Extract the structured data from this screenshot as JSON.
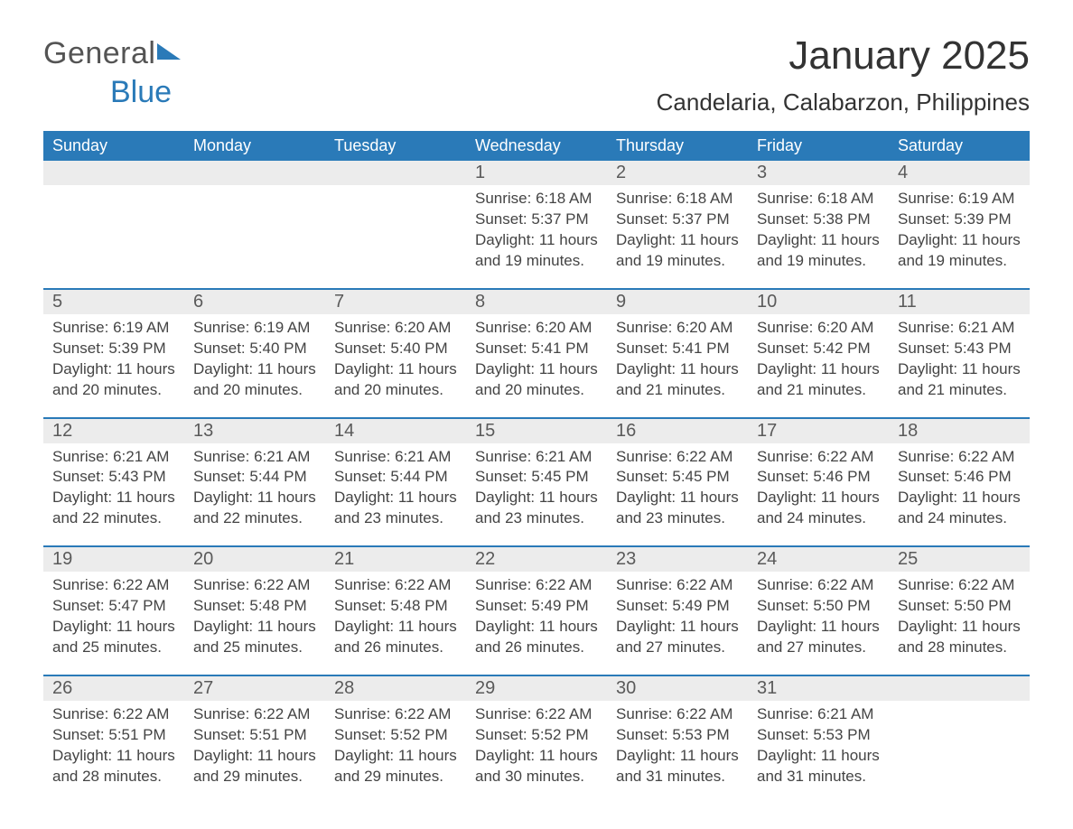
{
  "logo": {
    "word1": "General",
    "word2": "Blue"
  },
  "title": {
    "month": "January 2025",
    "location": "Candelaria, Calabarzon, Philippines"
  },
  "colors": {
    "header_bg": "#2a7ab8",
    "header_text": "#ffffff",
    "daynum_bg": "#ececec",
    "rule": "#2a7ab8",
    "body_text": "#444444",
    "page_bg": "#ffffff"
  },
  "typography": {
    "month_fontsize": 44,
    "location_fontsize": 26,
    "dayheader_fontsize": 18,
    "daynum_fontsize": 20,
    "body_fontsize": 17
  },
  "day_headers": [
    "Sunday",
    "Monday",
    "Tuesday",
    "Wednesday",
    "Thursday",
    "Friday",
    "Saturday"
  ],
  "weeks": [
    [
      null,
      null,
      null,
      {
        "n": "1",
        "sunrise": "6:18 AM",
        "sunset": "5:37 PM",
        "daylight": "11 hours and 19 minutes."
      },
      {
        "n": "2",
        "sunrise": "6:18 AM",
        "sunset": "5:37 PM",
        "daylight": "11 hours and 19 minutes."
      },
      {
        "n": "3",
        "sunrise": "6:18 AM",
        "sunset": "5:38 PM",
        "daylight": "11 hours and 19 minutes."
      },
      {
        "n": "4",
        "sunrise": "6:19 AM",
        "sunset": "5:39 PM",
        "daylight": "11 hours and 19 minutes."
      }
    ],
    [
      {
        "n": "5",
        "sunrise": "6:19 AM",
        "sunset": "5:39 PM",
        "daylight": "11 hours and 20 minutes."
      },
      {
        "n": "6",
        "sunrise": "6:19 AM",
        "sunset": "5:40 PM",
        "daylight": "11 hours and 20 minutes."
      },
      {
        "n": "7",
        "sunrise": "6:20 AM",
        "sunset": "5:40 PM",
        "daylight": "11 hours and 20 minutes."
      },
      {
        "n": "8",
        "sunrise": "6:20 AM",
        "sunset": "5:41 PM",
        "daylight": "11 hours and 20 minutes."
      },
      {
        "n": "9",
        "sunrise": "6:20 AM",
        "sunset": "5:41 PM",
        "daylight": "11 hours and 21 minutes."
      },
      {
        "n": "10",
        "sunrise": "6:20 AM",
        "sunset": "5:42 PM",
        "daylight": "11 hours and 21 minutes."
      },
      {
        "n": "11",
        "sunrise": "6:21 AM",
        "sunset": "5:43 PM",
        "daylight": "11 hours and 21 minutes."
      }
    ],
    [
      {
        "n": "12",
        "sunrise": "6:21 AM",
        "sunset": "5:43 PM",
        "daylight": "11 hours and 22 minutes."
      },
      {
        "n": "13",
        "sunrise": "6:21 AM",
        "sunset": "5:44 PM",
        "daylight": "11 hours and 22 minutes."
      },
      {
        "n": "14",
        "sunrise": "6:21 AM",
        "sunset": "5:44 PM",
        "daylight": "11 hours and 23 minutes."
      },
      {
        "n": "15",
        "sunrise": "6:21 AM",
        "sunset": "5:45 PM",
        "daylight": "11 hours and 23 minutes."
      },
      {
        "n": "16",
        "sunrise": "6:22 AM",
        "sunset": "5:45 PM",
        "daylight": "11 hours and 23 minutes."
      },
      {
        "n": "17",
        "sunrise": "6:22 AM",
        "sunset": "5:46 PM",
        "daylight": "11 hours and 24 minutes."
      },
      {
        "n": "18",
        "sunrise": "6:22 AM",
        "sunset": "5:46 PM",
        "daylight": "11 hours and 24 minutes."
      }
    ],
    [
      {
        "n": "19",
        "sunrise": "6:22 AM",
        "sunset": "5:47 PM",
        "daylight": "11 hours and 25 minutes."
      },
      {
        "n": "20",
        "sunrise": "6:22 AM",
        "sunset": "5:48 PM",
        "daylight": "11 hours and 25 minutes."
      },
      {
        "n": "21",
        "sunrise": "6:22 AM",
        "sunset": "5:48 PM",
        "daylight": "11 hours and 26 minutes."
      },
      {
        "n": "22",
        "sunrise": "6:22 AM",
        "sunset": "5:49 PM",
        "daylight": "11 hours and 26 minutes."
      },
      {
        "n": "23",
        "sunrise": "6:22 AM",
        "sunset": "5:49 PM",
        "daylight": "11 hours and 27 minutes."
      },
      {
        "n": "24",
        "sunrise": "6:22 AM",
        "sunset": "5:50 PM",
        "daylight": "11 hours and 27 minutes."
      },
      {
        "n": "25",
        "sunrise": "6:22 AM",
        "sunset": "5:50 PM",
        "daylight": "11 hours and 28 minutes."
      }
    ],
    [
      {
        "n": "26",
        "sunrise": "6:22 AM",
        "sunset": "5:51 PM",
        "daylight": "11 hours and 28 minutes."
      },
      {
        "n": "27",
        "sunrise": "6:22 AM",
        "sunset": "5:51 PM",
        "daylight": "11 hours and 29 minutes."
      },
      {
        "n": "28",
        "sunrise": "6:22 AM",
        "sunset": "5:52 PM",
        "daylight": "11 hours and 29 minutes."
      },
      {
        "n": "29",
        "sunrise": "6:22 AM",
        "sunset": "5:52 PM",
        "daylight": "11 hours and 30 minutes."
      },
      {
        "n": "30",
        "sunrise": "6:22 AM",
        "sunset": "5:53 PM",
        "daylight": "11 hours and 31 minutes."
      },
      {
        "n": "31",
        "sunrise": "6:21 AM",
        "sunset": "5:53 PM",
        "daylight": "11 hours and 31 minutes."
      },
      null
    ]
  ],
  "labels": {
    "sunrise": "Sunrise:",
    "sunset": "Sunset:",
    "daylight": "Daylight:"
  }
}
